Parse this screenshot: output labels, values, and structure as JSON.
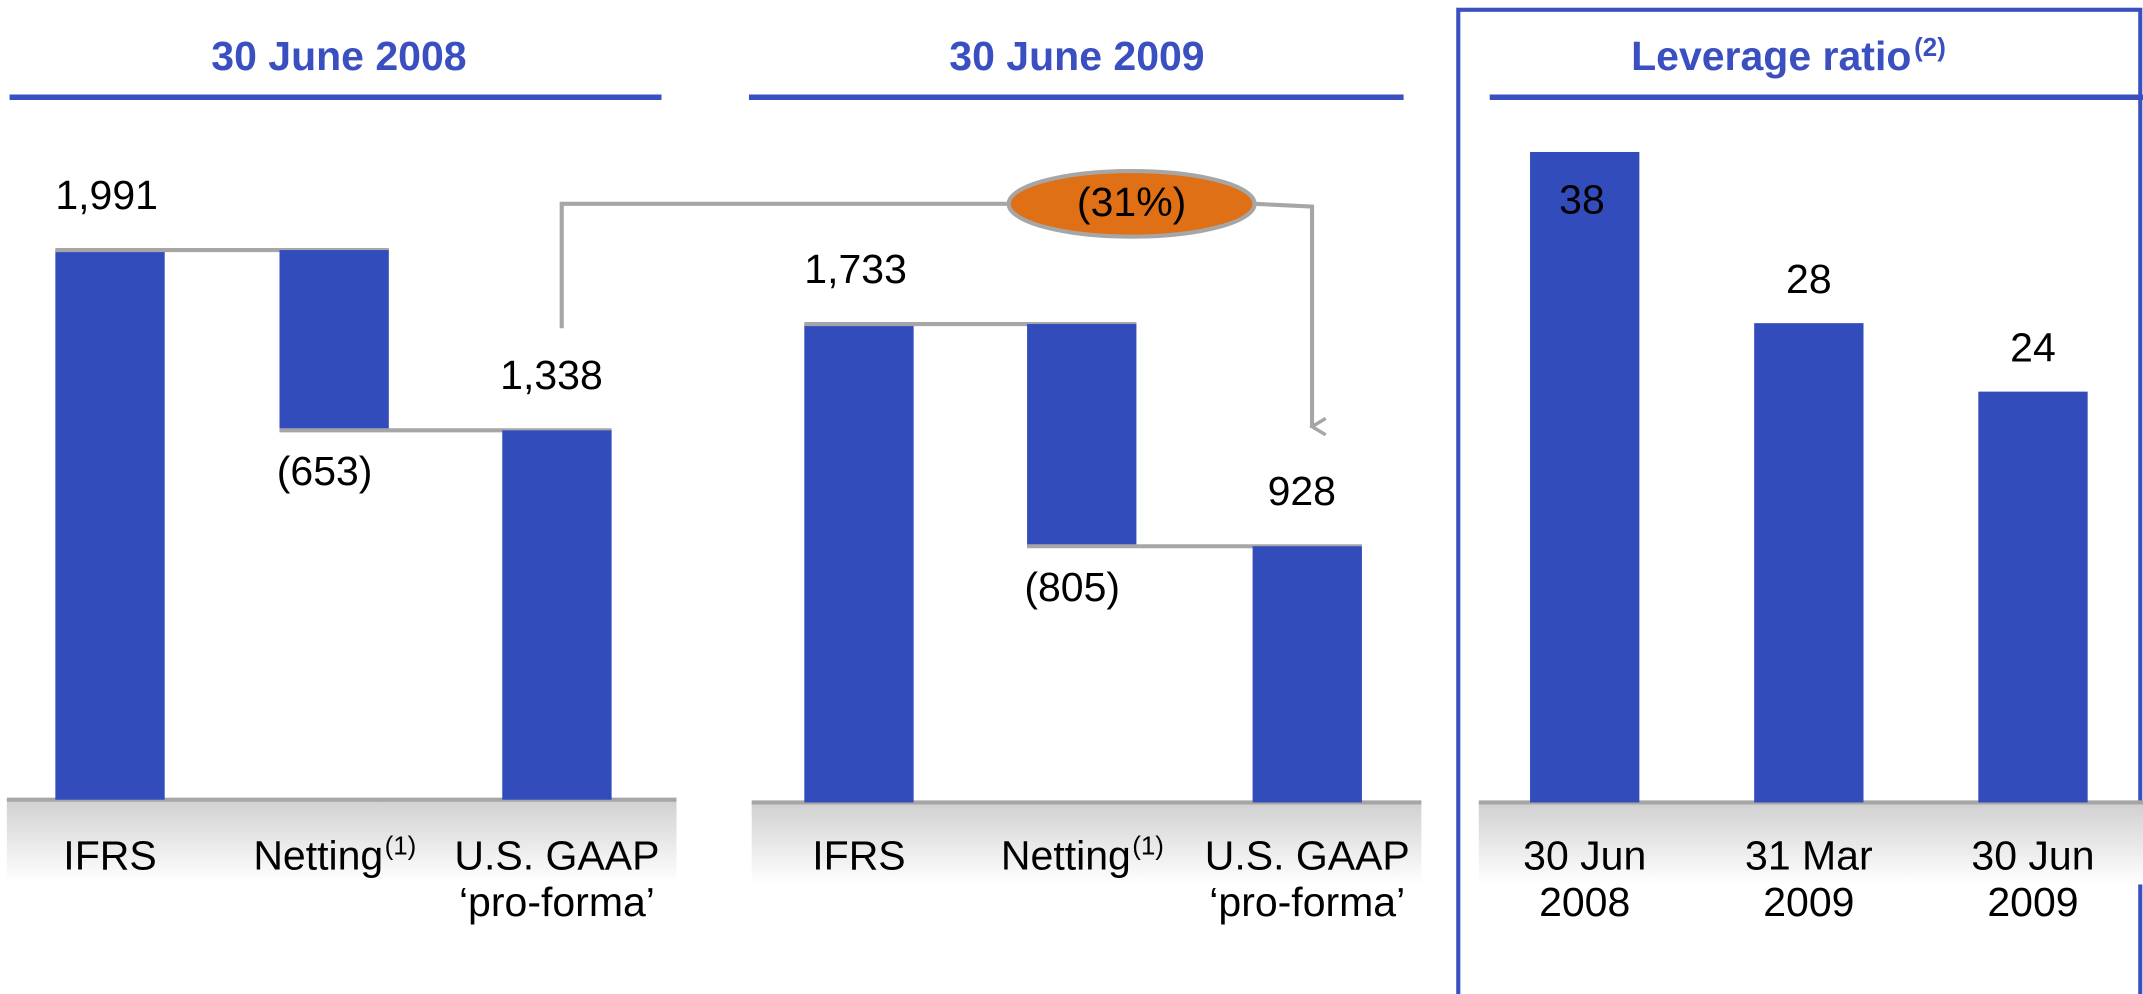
{
  "chart_data": [
    {
      "type": "waterfall",
      "title": "30 June 2008",
      "categories": [
        [
          "IFRS"
        ],
        [
          "Netting"
        ],
        [
          "U.S. GAAP",
          "‘pro-forma’"
        ]
      ],
      "category_notes": {
        "1": "(1)"
      },
      "values": [
        1991,
        -653,
        1338
      ],
      "value_labels": [
        "1,991",
        "(653)",
        "1,338"
      ],
      "color": "#334cbb",
      "ylim": [
        0,
        2000
      ]
    },
    {
      "type": "waterfall",
      "title": "30 June 2009",
      "categories": [
        [
          "IFRS"
        ],
        [
          "Netting"
        ],
        [
          "U.S. GAAP",
          "‘pro-forma’"
        ]
      ],
      "category_notes": {
        "1": "(1)"
      },
      "values": [
        1733,
        -805,
        928
      ],
      "value_labels": [
        "1,733",
        "(805)",
        "928"
      ],
      "color": "#334cbb",
      "ylim": [
        0,
        2000
      ],
      "annotation": "(31%)"
    },
    {
      "type": "bar",
      "title": "Leverage ratio",
      "title_note": "(2)",
      "categories": [
        [
          "30 Jun",
          "2008"
        ],
        [
          "31 Mar",
          "2009"
        ],
        [
          "30 Jun",
          "2009"
        ]
      ],
      "values": [
        38,
        28,
        24
      ],
      "color": "#334cbb",
      "ylim": [
        0,
        40
      ]
    }
  ]
}
